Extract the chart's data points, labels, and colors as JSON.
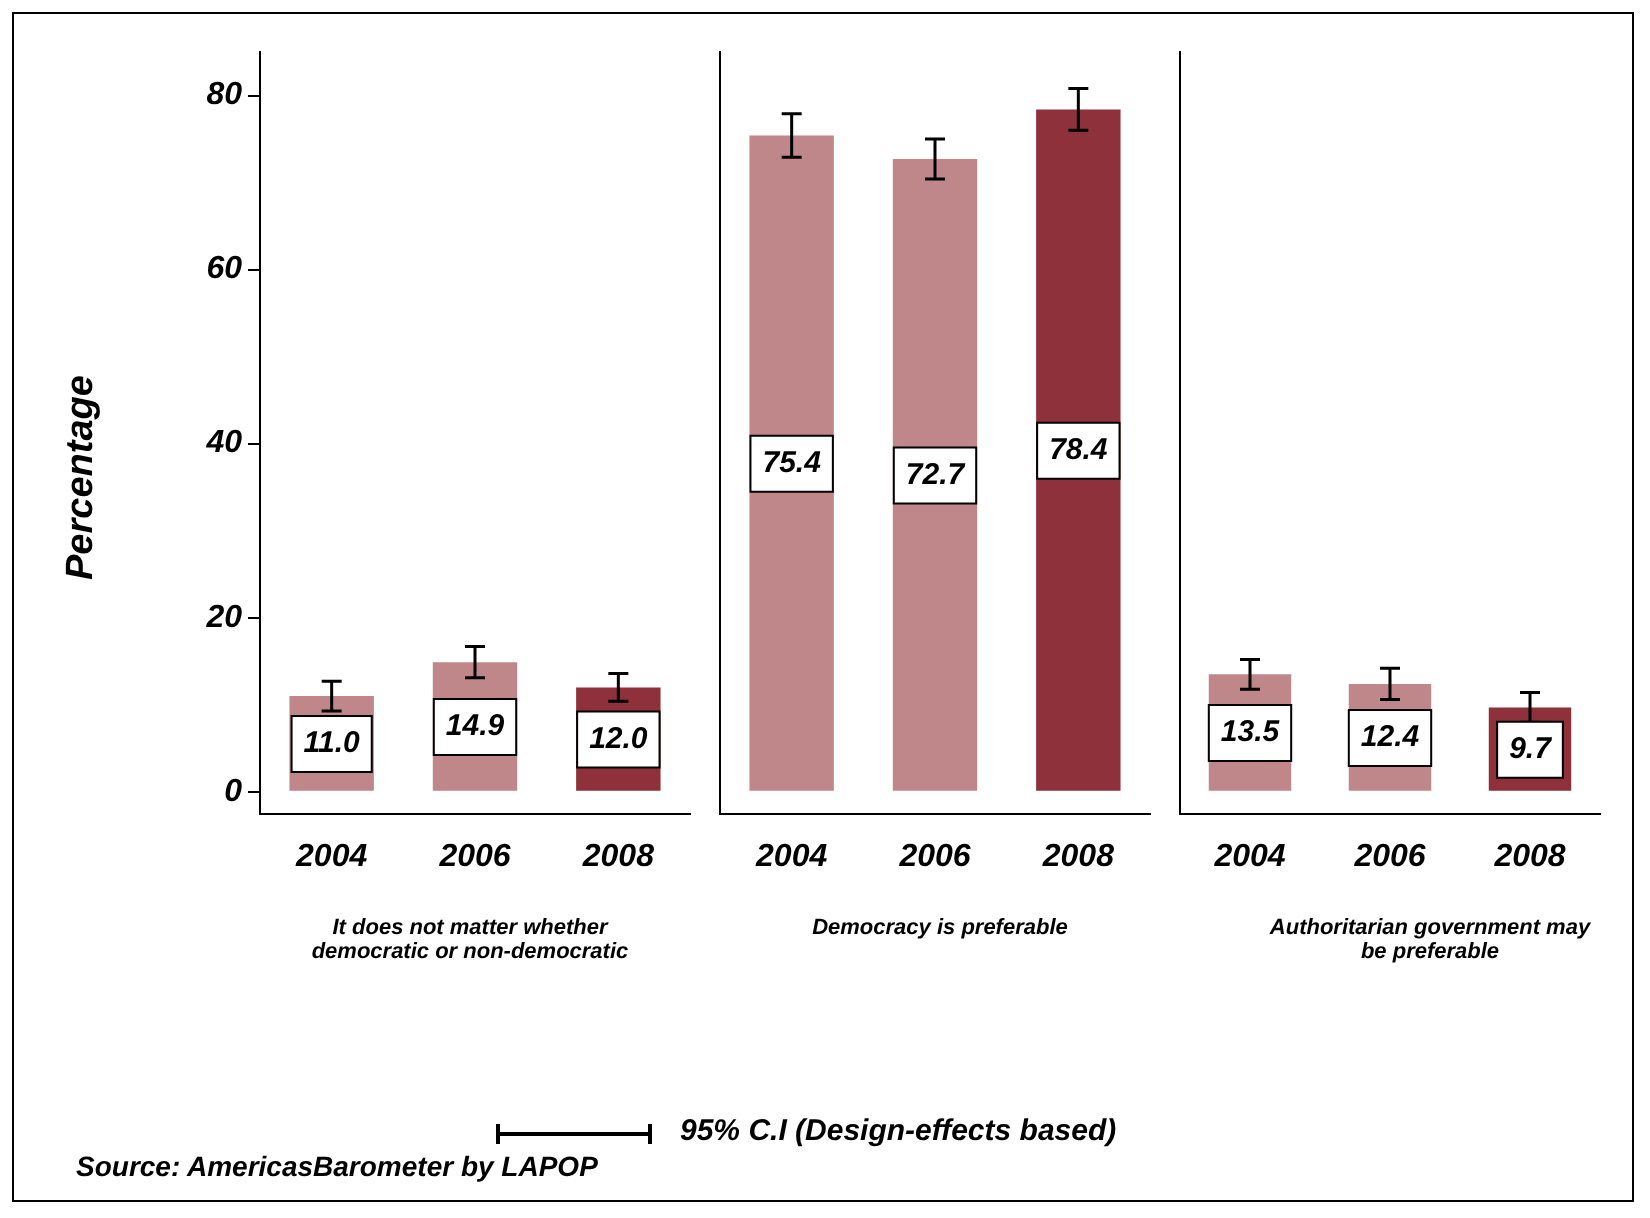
{
  "chart_data": [
    {
      "type": "bar",
      "categories": [
        "2004",
        "2006",
        "2008"
      ],
      "values": [
        11.0,
        14.9,
        12.0
      ],
      "value_labels": [
        "11.0",
        "14.9",
        "12.0"
      ],
      "colors": [
        "#c0878a",
        "#c0878a",
        "#8e313b"
      ],
      "errors": [
        1.7,
        1.8,
        1.6
      ],
      "xlabel": "It does not matter whether democratic or non-democratic",
      "ylabel": "Percentage",
      "ylim": [
        -2.5,
        85
      ],
      "yticks": [
        0,
        20,
        40,
        60,
        80
      ],
      "grid": false,
      "annotations": [
        "95% C.I (Design-effects based)",
        "Source: AmericasBarometer by LAPOP"
      ]
    },
    {
      "type": "bar",
      "categories": [
        "2004",
        "2006",
        "2008"
      ],
      "values": [
        75.4,
        72.7,
        78.4
      ],
      "value_labels": [
        "75.4",
        "72.7",
        "78.4"
      ],
      "colors": [
        "#c0878a",
        "#c0878a",
        "#8e313b"
      ],
      "errors": [
        2.5,
        2.3,
        2.4
      ],
      "xlabel": "Democracy is preferable",
      "ylim": [
        -2.5,
        85
      ],
      "yticks": [
        0,
        20,
        40,
        60,
        80
      ],
      "tick_labels": "x",
      "grid": false
    },
    {
      "type": "bar",
      "categories": [
        "2004",
        "2006",
        "2008"
      ],
      "values": [
        13.5,
        12.4,
        9.7
      ],
      "value_labels": [
        "13.5",
        "12.4",
        "9.7"
      ],
      "colors": [
        "#c0878a",
        "#c0878a",
        "#8e313b"
      ],
      "errors": [
        1.7,
        1.8,
        1.7
      ],
      "xlabel": "Authoritarian government may be preferable",
      "ylim": [
        -2.5,
        85
      ],
      "yticks": [
        0,
        20,
        40,
        60,
        80
      ],
      "tick_labels": "x",
      "grid": false
    }
  ]
}
